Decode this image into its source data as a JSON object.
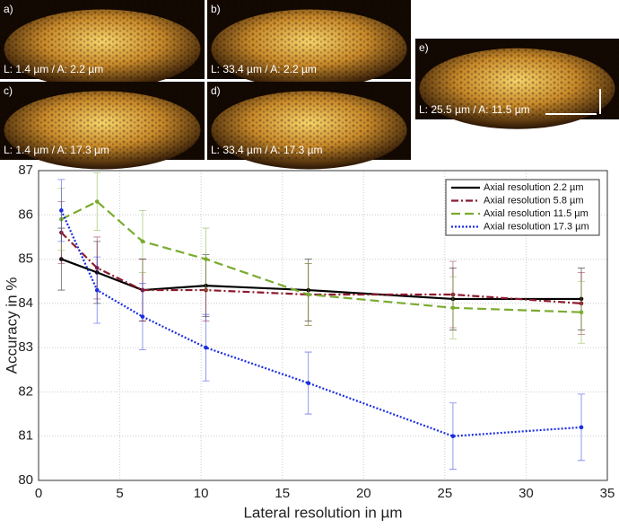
{
  "panels": [
    {
      "letter": "a)",
      "caption": "L: 1.4 µm / A: 2.2 µm"
    },
    {
      "letter": "b)",
      "caption": "L: 33.4 µm / A: 2.2 µm"
    },
    {
      "letter": "c)",
      "caption": "L: 1.4 µm / A: 17.3 µm"
    },
    {
      "letter": "d)",
      "caption": "L: 33.4 µm / A: 17.3 µm"
    },
    {
      "letter": "e)",
      "caption": "L: 25.5 µm / A: 11.5 µm"
    }
  ],
  "chart_data": {
    "type": "line",
    "x_label": "Lateral resolution in µm",
    "y_label": "Accuracy in %",
    "x": [
      1.4,
      3.6,
      6.4,
      10.3,
      16.6,
      25.5,
      33.4
    ],
    "series": [
      {
        "name": "Axial resolution 2.2 µm",
        "color": "#000000",
        "dash": "",
        "values": [
          85.0,
          84.7,
          84.3,
          84.4,
          84.3,
          84.1,
          84.1
        ],
        "errors": [
          0.7,
          0.7,
          0.7,
          0.7,
          0.7,
          0.7,
          0.7
        ]
      },
      {
        "name": "Axial resolution 5.8 µm",
        "color": "#8b1a2e",
        "dash": "8 3 2 3",
        "values": [
          85.6,
          84.8,
          84.3,
          84.3,
          84.2,
          84.2,
          84.0
        ],
        "errors": [
          0.7,
          0.7,
          0.7,
          0.7,
          0.7,
          0.75,
          0.7
        ]
      },
      {
        "name": "Axial resolution 11.5 µm",
        "color": "#7aab2e",
        "dash": "10 5",
        "values": [
          85.9,
          86.3,
          85.4,
          85.0,
          84.2,
          83.9,
          83.8
        ],
        "errors": [
          0.7,
          0.65,
          0.7,
          0.7,
          0.7,
          0.7,
          0.7
        ]
      },
      {
        "name": "Axial resolution 17.3 µm",
        "color": "#1a2ee0",
        "dash": "2 2",
        "values": [
          86.1,
          84.3,
          83.7,
          83.0,
          82.2,
          81.0,
          81.2
        ],
        "errors": [
          0.7,
          0.75,
          0.75,
          0.75,
          0.7,
          0.75,
          0.75
        ]
      }
    ],
    "xlim": [
      0,
      35
    ],
    "ylim": [
      80,
      87
    ],
    "xticks": [
      0,
      5,
      10,
      15,
      20,
      25,
      30,
      35
    ],
    "yticks": [
      80,
      81,
      82,
      83,
      84,
      85,
      86,
      87
    ],
    "grid": true,
    "legend": "top-right"
  }
}
